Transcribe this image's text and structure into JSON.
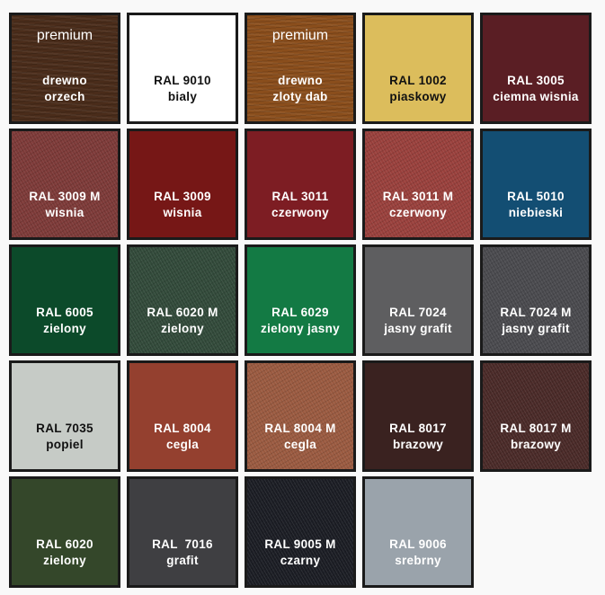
{
  "swatches": [
    {
      "badge": "premium",
      "code": "drewno",
      "name": "orzech",
      "color": "#4a2c1a",
      "text": "#ffffff",
      "finish": "wood"
    },
    {
      "code": "RAL 9010",
      "name": "bialy",
      "color": "#ffffff",
      "text": "#111111",
      "finish": "smooth"
    },
    {
      "badge": "premium",
      "code": "drewno",
      "name": "zloty dab",
      "color": "#8a4e1c",
      "text": "#ffffff",
      "finish": "wood"
    },
    {
      "code": "RAL 1002",
      "name": "piaskowy",
      "color": "#dcbd5c",
      "text": "#111111",
      "finish": "smooth"
    },
    {
      "code": "RAL 3005",
      "name": "ciemna wisnia",
      "color": "#5a1e24",
      "text": "#ffffff",
      "finish": "smooth"
    },
    {
      "code": "RAL 3009 M",
      "name": "wisnia",
      "color": "#7d3a38",
      "text": "#ffffff",
      "finish": "textured"
    },
    {
      "code": "RAL 3009",
      "name": "wisnia",
      "color": "#761716",
      "text": "#ffffff",
      "finish": "smooth"
    },
    {
      "code": "RAL 3011",
      "name": "czerwony",
      "color": "#7d1d23",
      "text": "#ffffff",
      "finish": "smooth"
    },
    {
      "code": "RAL 3011 M",
      "name": "czerwony",
      "color": "#99403c",
      "text": "#ffffff",
      "finish": "textured"
    },
    {
      "code": "RAL 5010",
      "name": "niebieski",
      "color": "#134e73",
      "text": "#ffffff",
      "finish": "smooth"
    },
    {
      "code": "RAL 6005",
      "name": "zielony",
      "color": "#0c4a2a",
      "text": "#ffffff",
      "finish": "smooth"
    },
    {
      "code": "RAL 6020 M",
      "name": "zielony",
      "color": "#324a3a",
      "text": "#ffffff",
      "finish": "textured"
    },
    {
      "code": "RAL 6029",
      "name": "zielony jasny",
      "color": "#137a44",
      "text": "#ffffff",
      "finish": "smooth"
    },
    {
      "code": "RAL 7024",
      "name": "jasny grafit",
      "color": "#5e5e60",
      "text": "#ffffff",
      "finish": "smooth"
    },
    {
      "code": "RAL 7024 M",
      "name": "jasny grafit",
      "color": "#4a4a4e",
      "text": "#ffffff",
      "finish": "textured"
    },
    {
      "code": "RAL 7035",
      "name": "popiel",
      "color": "#c6cbc6",
      "text": "#111111",
      "finish": "smooth"
    },
    {
      "code": "RAL 8004",
      "name": "cegla",
      "color": "#94402f",
      "text": "#ffffff",
      "finish": "smooth"
    },
    {
      "code": "RAL 8004 M",
      "name": "cegla",
      "color": "#9a5a40",
      "text": "#ffffff",
      "finish": "textured"
    },
    {
      "code": "RAL 8017",
      "name": "brazowy",
      "color": "#3a2220",
      "text": "#ffffff",
      "finish": "smooth"
    },
    {
      "code": "RAL 8017 M",
      "name": "brazowy",
      "color": "#4a2a28",
      "text": "#ffffff",
      "finish": "textured"
    },
    {
      "code": "RAL 6020",
      "name": "zielony",
      "color": "#34472a",
      "text": "#ffffff",
      "finish": "smooth"
    },
    {
      "code": "RAL  7016",
      "name": "grafit",
      "color": "#3f3f42",
      "text": "#ffffff",
      "finish": "smooth"
    },
    {
      "code": "RAL 9005 M",
      "name": "czarny",
      "color": "#1b1d24",
      "text": "#ffffff",
      "finish": "textured"
    },
    {
      "code": "RAL 9006",
      "name": "srebrny",
      "color": "#9aa3ab",
      "text": "#ffffff",
      "finish": "smooth"
    }
  ]
}
